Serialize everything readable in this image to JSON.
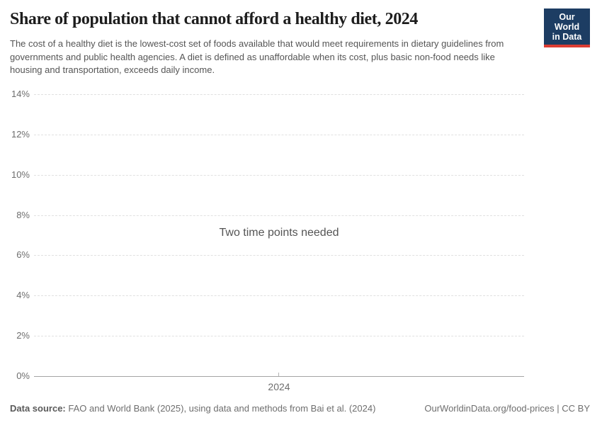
{
  "header": {
    "title": "Share of population that cannot afford a healthy diet, 2024",
    "subtitle": "The cost of a healthy diet is the lowest-cost set of foods available that would meet requirements in dietary guidelines from governments and public health agencies. A diet is defined as unaffordable when its cost, plus basic non-food needs like housing and transportation, exceeds daily income.",
    "logo": {
      "line1": "Our World",
      "line2": "in Data"
    }
  },
  "chart_data": {
    "type": "line",
    "title": "Share of population that cannot afford a healthy diet, 2024",
    "empty": true,
    "message": "Two time points needed",
    "series": [],
    "x_ticks": [
      "2024"
    ],
    "y_ticks": [
      0,
      2,
      4,
      6,
      8,
      10,
      12,
      14
    ],
    "y_tick_suffix": "%",
    "ylim": [
      0,
      14
    ],
    "xlabel": "",
    "ylabel": "",
    "grid": true,
    "legend": "none"
  },
  "footer": {
    "data_source_label": "Data source:",
    "data_source_text": "FAO and World Bank (2025), using data and methods from Bai et al. (2024)",
    "citation": "OurWorldinData.org/food-prices | CC BY"
  },
  "colors": {
    "logo_bg": "#1d3d63",
    "logo_accent": "#dc3d33",
    "grid": "#e0e0e0",
    "axis": "#a5a5a5",
    "tick_text": "#6e6e6e",
    "title_text": "#1d1d1d",
    "subtitle_text": "#555555",
    "message_text": "#545454",
    "footer_text": "#6e6e6e"
  }
}
